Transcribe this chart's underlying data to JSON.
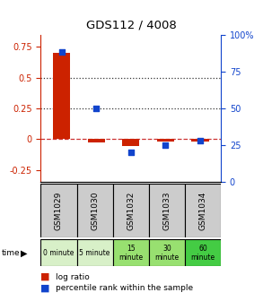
{
  "title": "GDS112 / 4008",
  "samples": [
    "GSM1029",
    "GSM1030",
    "GSM1032",
    "GSM1033",
    "GSM1034"
  ],
  "log_ratio": [
    0.7,
    -0.03,
    -0.06,
    -0.02,
    -0.02
  ],
  "percentile": [
    88,
    50,
    20,
    25,
    28
  ],
  "time_labels": [
    "0 minute",
    "5 minute",
    "15\nminute",
    "30\nminute",
    "60\nminute"
  ],
  "time_colors": [
    "#d8f0c8",
    "#d8f0c8",
    "#98e070",
    "#98e070",
    "#44cc44"
  ],
  "bar_color": "#cc2200",
  "scatter_color": "#1144cc",
  "left_ylim": [
    -0.35,
    0.85
  ],
  "right_ylim": [
    0,
    100
  ],
  "left_yticks": [
    -0.25,
    0,
    0.25,
    0.5,
    0.75
  ],
  "right_yticks": [
    0,
    25,
    50,
    75,
    100
  ],
  "left_yticklabels": [
    "-0.25",
    "0",
    "0.25",
    "0.5",
    "0.75"
  ],
  "right_yticklabels": [
    "0",
    "25",
    "50",
    "75",
    "100%"
  ],
  "hline_y_red": 0.0,
  "hline_y_dots": [
    0.25,
    0.5
  ],
  "sample_header_color": "#cccccc",
  "bg_color": "#ffffff"
}
